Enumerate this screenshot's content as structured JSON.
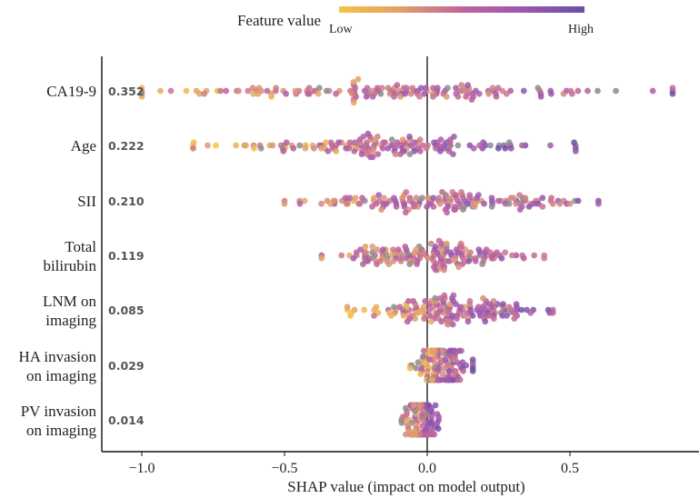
{
  "chart_data": {
    "type": "scatter",
    "subtype": "shap-beeswarm",
    "xlabel": "SHAP value (impact on model output)",
    "xlim": [
      -1.1,
      0.9
    ],
    "xticks": [
      -1.0,
      -0.5,
      0.0,
      0.5
    ],
    "xtick_labels": [
      "−1.0",
      "−0.5",
      "0.0",
      "0.5"
    ],
    "legend": {
      "title": "Feature value",
      "low_label": "Low",
      "high_label": "High",
      "placement": "top-center",
      "colors": [
        "#f5c342",
        "#e0a06a",
        "#c0649a",
        "#9b57b2",
        "#6a4fa3"
      ]
    },
    "missing_color": "#8c8c8c",
    "features": [
      {
        "label_lines": [
          "CA19-9"
        ],
        "importance": "0.352",
        "spread": [
          -1.0,
          0.86
        ],
        "bias": 0.5
      },
      {
        "label_lines": [
          "Age"
        ],
        "importance": "0.222",
        "spread": [
          -0.82,
          0.52
        ],
        "bias": 0.7
      },
      {
        "label_lines": [
          "SII"
        ],
        "importance": "0.210",
        "spread": [
          -0.5,
          0.6
        ],
        "bias": 0.25
      },
      {
        "label_lines": [
          "Total",
          "bilirubin"
        ],
        "importance": "0.119",
        "spread": [
          -0.37,
          0.41
        ],
        "bias": 0.2
      },
      {
        "label_lines": [
          "LNM on",
          "imaging"
        ],
        "importance": "0.085",
        "spread": [
          -0.28,
          0.44
        ],
        "bias": 0.6
      },
      {
        "label_lines": [
          "HA invasion",
          "on imaging"
        ],
        "importance": "0.029",
        "spread": [
          -0.06,
          0.16
        ],
        "bias": 0.7
      },
      {
        "label_lines": [
          "PV invasion",
          "on imaging"
        ],
        "importance": "0.014",
        "spread": [
          -0.09,
          0.04
        ],
        "bias": 0.6
      }
    ]
  }
}
